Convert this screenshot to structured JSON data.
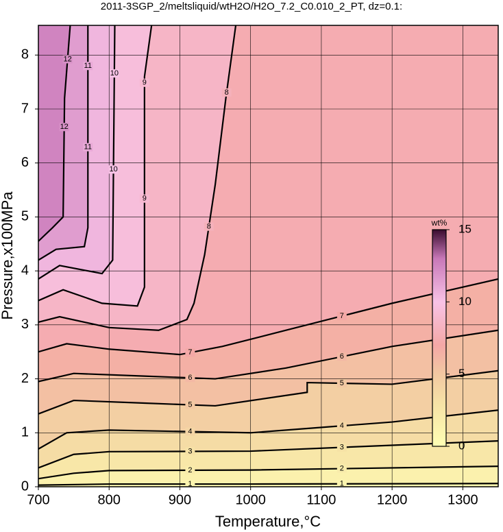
{
  "chart_data": {
    "type": "contour",
    "title": "2011-3SGP_2/meltsliquid/wtH2O/H2O_7.2_C0.010_2_PT, dz=0.1:",
    "x_label": "Temperature,°C",
    "y_label": "Pressure,x100MPa",
    "xlim": [
      700,
      1350
    ],
    "ylim": [
      0,
      8.55
    ],
    "xticks": [
      700,
      800,
      900,
      1000,
      1100,
      1200,
      1300
    ],
    "yticks": [
      0,
      1,
      2,
      3,
      4,
      5,
      6,
      7,
      8
    ],
    "grid": true,
    "colorbar": {
      "label": "wt%",
      "lim": [
        0,
        15
      ],
      "ticks": [
        0,
        5,
        10,
        15
      ]
    },
    "colormap": [
      {
        "value": 0,
        "color": "#ffffb4"
      },
      {
        "value": 3,
        "color": "#f6e2a6"
      },
      {
        "value": 5,
        "color": "#f2c8a2"
      },
      {
        "value": 7,
        "color": "#f4a8a6"
      },
      {
        "value": 10,
        "color": "#f8c2e6"
      },
      {
        "value": 13,
        "color": "#c878b8"
      },
      {
        "value": 15,
        "color": "#3a0c2e"
      }
    ],
    "series": [
      {
        "name": "1",
        "color": "#000000",
        "x": [
          700,
          800,
          1000,
          1350
        ],
        "y": [
          0.03,
          0.05,
          0.05,
          0.06
        ]
      },
      {
        "name": "2",
        "color": "#000000",
        "x": [
          700,
          750,
          800,
          1000,
          1350
        ],
        "y": [
          0.15,
          0.25,
          0.3,
          0.31,
          0.38
        ]
      },
      {
        "name": "3",
        "color": "#000000",
        "x": [
          700,
          750,
          800,
          1000,
          1350
        ],
        "y": [
          0.35,
          0.6,
          0.65,
          0.66,
          0.85
        ]
      },
      {
        "name": "4",
        "color": "#000000",
        "x": [
          700,
          740,
          800,
          1000,
          1200,
          1350
        ],
        "y": [
          0.7,
          1.0,
          1.05,
          1.0,
          1.2,
          1.42
        ]
      },
      {
        "name": "5",
        "color": "#000000",
        "x": [
          700,
          750,
          850,
          950,
          1080,
          1080,
          1200,
          1350
        ],
        "y": [
          1.35,
          1.6,
          1.55,
          1.5,
          1.75,
          1.93,
          1.9,
          2.15
        ]
      },
      {
        "name": "6",
        "color": "#000000",
        "x": [
          700,
          750,
          850,
          950,
          1050,
          1200,
          1350
        ],
        "y": [
          1.95,
          2.1,
          2.05,
          2.0,
          2.2,
          2.6,
          2.9
        ]
      },
      {
        "name": "7",
        "color": "#000000",
        "x": [
          700,
          740,
          800,
          900,
          960,
          1050,
          1200,
          1350
        ],
        "y": [
          2.5,
          2.65,
          2.55,
          2.45,
          2.6,
          2.9,
          3.4,
          3.85
        ]
      },
      {
        "name": "8",
        "color": "#000000",
        "x": [
          700,
          730,
          800,
          870,
          910,
          920,
          935,
          950,
          965,
          979
        ],
        "y": [
          3.05,
          3.15,
          2.95,
          2.9,
          3.1,
          3.4,
          4.3,
          5.6,
          7.2,
          8.55
        ]
      },
      {
        "name": "9",
        "color": "#000000",
        "x": [
          700,
          735,
          790,
          840,
          850,
          850,
          860
        ],
        "y": [
          3.45,
          3.65,
          3.4,
          3.35,
          3.7,
          7.6,
          8.55
        ]
      },
      {
        "name": "10",
        "color": "#000000",
        "x": [
          700,
          730,
          790,
          805,
          808
        ],
        "y": [
          3.85,
          4.1,
          3.95,
          4.2,
          8.55
        ]
      },
      {
        "name": "11",
        "color": "#000000",
        "x": [
          700,
          725,
          765,
          770,
          770
        ],
        "y": [
          4.2,
          4.4,
          4.45,
          4.8,
          8.55
        ]
      },
      {
        "name": "12",
        "color": "#000000",
        "x": [
          700,
          720,
          735,
          737,
          745
        ],
        "y": [
          4.55,
          4.8,
          5.0,
          7.2,
          8.55
        ]
      }
    ]
  }
}
